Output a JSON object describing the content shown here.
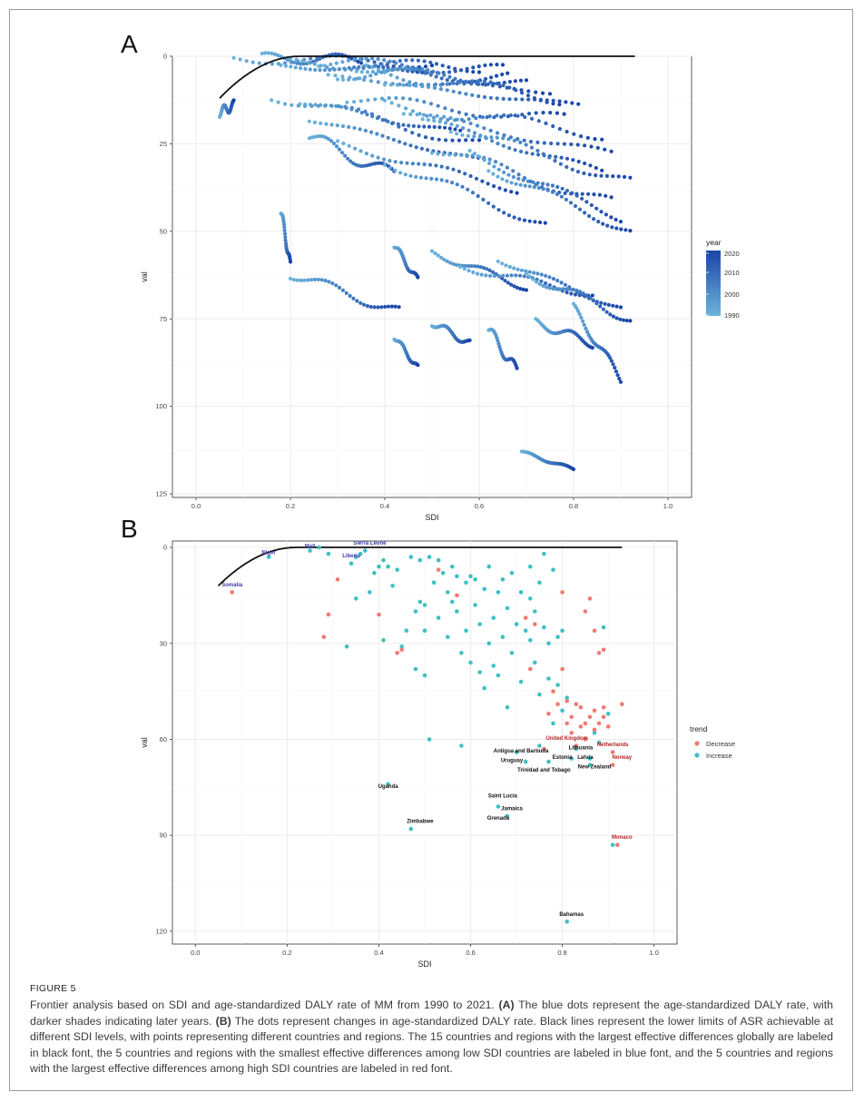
{
  "caption": {
    "label": "FIGURE 5",
    "p1": "Frontier analysis based on SDI and age-standardized DALY rate of MM from 1990 to 2021. ",
    "a_tag": "(A)",
    "p2": " The blue dots represent the age-standardized DALY rate, with darker shades indicating later years. ",
    "b_tag": "(B)",
    "p3": " The dots represent changes in age-standardized DALY rate. Black lines represent the lower limits of ASR achievable at different SDI levels, with points representing different countries and regions. The 15 countries and regions with the largest effective differences globally are labeled in black font, the 5 countries and regions with the smallest effective differences among low SDI countries are labeled in blue font, and the 5 countries and regions with the largest effective differences among high SDI countries are labeled in red font."
  },
  "colors": {
    "year_low": "#6BB3DB",
    "year_high": "#1A45A8",
    "decrease": "#F07A73",
    "increase": "#3EC0C4",
    "frontier": "#111111",
    "grid": "#ebebeb",
    "label_blue": "#3B3BA8",
    "label_red": "#B22222",
    "label_black": "#111111"
  },
  "chart_data": [
    {
      "panel": "A",
      "type": "scatter",
      "title": "",
      "xlabel": "SDI",
      "ylabel": "val",
      "xlim": [
        -0.05,
        1.05
      ],
      "ylim": [
        0,
        126
      ],
      "y_reversed": true,
      "xticks": [
        "0.0",
        "0.2",
        "0.4",
        "0.6",
        "0.8",
        "1.0"
      ],
      "yticks": [
        "0",
        "25",
        "50",
        "75",
        "100",
        "125"
      ],
      "grid": true,
      "legend": {
        "title": "year",
        "type": "colorbar",
        "position": "right",
        "labels": [
          "2020",
          "2010",
          "2000",
          "1990"
        ]
      },
      "frontier": {
        "x": [
          0.05,
          0.08,
          0.11,
          0.14,
          0.17,
          0.2,
          0.22,
          0.3,
          0.5,
          0.7,
          0.93
        ],
        "y": [
          12,
          8.5,
          5.5,
          3,
          1.2,
          0.3,
          0,
          0,
          0,
          0,
          0
        ]
      },
      "trajectories": [
        {
          "x0": 0.05,
          "y0": 16,
          "x1": 0.08,
          "y1": 14
        },
        {
          "x0": 0.08,
          "y0": 0.5,
          "x1": 0.5,
          "y1": 2
        },
        {
          "x0": 0.14,
          "y0": 0.5,
          "x1": 0.35,
          "y1": 1
        },
        {
          "x0": 0.18,
          "y0": 3,
          "x1": 0.5,
          "y1": 4
        },
        {
          "x0": 0.2,
          "y0": 2,
          "x1": 0.6,
          "y1": 3
        },
        {
          "x0": 0.26,
          "y0": 1.5,
          "x1": 0.65,
          "y1": 4
        },
        {
          "x0": 0.3,
          "y0": 5,
          "x1": 0.66,
          "y1": 6
        },
        {
          "x0": 0.34,
          "y0": 3,
          "x1": 0.7,
          "y1": 8
        },
        {
          "x0": 0.28,
          "y0": 6,
          "x1": 0.75,
          "y1": 10
        },
        {
          "x0": 0.36,
          "y0": 4,
          "x1": 0.77,
          "y1": 12
        },
        {
          "x0": 0.4,
          "y0": 8,
          "x1": 0.81,
          "y1": 14
        },
        {
          "x0": 0.32,
          "y0": 12,
          "x1": 0.78,
          "y1": 18
        },
        {
          "x0": 0.22,
          "y0": 13,
          "x1": 0.56,
          "y1": 22
        },
        {
          "x0": 0.4,
          "y0": 14,
          "x1": 0.86,
          "y1": 22
        },
        {
          "x0": 0.44,
          "y0": 16,
          "x1": 0.88,
          "y1": 28
        },
        {
          "x0": 0.16,
          "y0": 11,
          "x1": 0.6,
          "y1": 25
        },
        {
          "x0": 0.24,
          "y0": 18,
          "x1": 0.61,
          "y1": 30
        },
        {
          "x0": 0.48,
          "y0": 18,
          "x1": 0.86,
          "y1": 33
        },
        {
          "x0": 0.24,
          "y0": 23,
          "x1": 0.42,
          "y1": 34
        },
        {
          "x0": 0.54,
          "y0": 20,
          "x1": 0.92,
          "y1": 36
        },
        {
          "x0": 0.3,
          "y0": 25,
          "x1": 0.68,
          "y1": 38
        },
        {
          "x0": 0.5,
          "y0": 26,
          "x1": 0.88,
          "y1": 42
        },
        {
          "x0": 0.58,
          "y0": 28,
          "x1": 0.9,
          "y1": 46
        },
        {
          "x0": 0.4,
          "y0": 30,
          "x1": 0.74,
          "y1": 48
        },
        {
          "x0": 0.62,
          "y0": 32,
          "x1": 0.92,
          "y1": 50
        },
        {
          "x0": 0.18,
          "y0": 44,
          "x1": 0.2,
          "y1": 60
        },
        {
          "x0": 0.2,
          "y0": 62,
          "x1": 0.43,
          "y1": 73
        },
        {
          "x0": 0.42,
          "y0": 54,
          "x1": 0.47,
          "y1": 64
        },
        {
          "x0": 0.5,
          "y0": 56,
          "x1": 0.7,
          "y1": 66
        },
        {
          "x0": 0.56,
          "y0": 60,
          "x1": 0.84,
          "y1": 68
        },
        {
          "x0": 0.64,
          "y0": 58,
          "x1": 0.9,
          "y1": 72
        },
        {
          "x0": 0.7,
          "y0": 62,
          "x1": 0.92,
          "y1": 75
        },
        {
          "x0": 0.42,
          "y0": 80,
          "x1": 0.47,
          "y1": 89
        },
        {
          "x0": 0.5,
          "y0": 76,
          "x1": 0.58,
          "y1": 82
        },
        {
          "x0": 0.62,
          "y0": 78,
          "x1": 0.68,
          "y1": 90
        },
        {
          "x0": 0.72,
          "y0": 76,
          "x1": 0.84,
          "y1": 82
        },
        {
          "x0": 0.8,
          "y0": 72,
          "x1": 0.9,
          "y1": 92
        },
        {
          "x0": 0.69,
          "y0": 113,
          "x1": 0.8,
          "y1": 118
        }
      ]
    },
    {
      "panel": "B",
      "type": "scatter",
      "title": "",
      "xlabel": "SDI",
      "ylabel": "val",
      "xlim": [
        -0.05,
        1.05
      ],
      "ylim": [
        -2,
        124
      ],
      "y_reversed": true,
      "xticks": [
        "0.0",
        "0.2",
        "0.4",
        "0.6",
        "0.8",
        "1.0"
      ],
      "yticks": [
        "0",
        "30",
        "60",
        "90",
        "120"
      ],
      "grid": true,
      "legend": {
        "title": "trend",
        "position": "right",
        "entries": [
          "Decrease",
          "Increase"
        ]
      },
      "frontier": {
        "x": [
          0.05,
          0.08,
          0.11,
          0.14,
          0.17,
          0.2,
          0.22,
          0.3,
          0.5,
          0.7,
          0.93
        ],
        "y": [
          12,
          8.5,
          5.5,
          3,
          1.2,
          0.3,
          0,
          0,
          0,
          0,
          0
        ]
      },
      "labels": [
        {
          "text": "Somalia",
          "x": 0.08,
          "y": 13,
          "color": "blue"
        },
        {
          "text": "Niger",
          "x": 0.16,
          "y": 3,
          "color": "blue"
        },
        {
          "text": "Mali",
          "x": 0.25,
          "y": 1,
          "color": "blue"
        },
        {
          "text": "Sierra Leone",
          "x": 0.38,
          "y": 0,
          "color": "blue"
        },
        {
          "text": "Liberia",
          "x": 0.34,
          "y": 4,
          "color": "blue"
        },
        {
          "text": "Uganda",
          "x": 0.42,
          "y": 76,
          "color": "black"
        },
        {
          "text": "Zimbabwe",
          "x": 0.49,
          "y": 87,
          "color": "black"
        },
        {
          "text": "Saint Lucia",
          "x": 0.67,
          "y": 79,
          "color": "black"
        },
        {
          "text": "Jamaica",
          "x": 0.69,
          "y": 83,
          "color": "black"
        },
        {
          "text": "Grenada",
          "x": 0.66,
          "y": 86,
          "color": "black"
        },
        {
          "text": "Antigua and Barbuda",
          "x": 0.71,
          "y": 65,
          "color": "black"
        },
        {
          "text": "Uruguay",
          "x": 0.69,
          "y": 68,
          "color": "black"
        },
        {
          "text": "Trinidad and Tobago",
          "x": 0.76,
          "y": 71,
          "color": "black"
        },
        {
          "text": "Estonia",
          "x": 0.8,
          "y": 67,
          "color": "black"
        },
        {
          "text": "Latvia",
          "x": 0.85,
          "y": 67,
          "color": "black"
        },
        {
          "text": "Lithuania",
          "x": 0.84,
          "y": 64,
          "color": "black"
        },
        {
          "text": "New Zealand",
          "x": 0.87,
          "y": 70,
          "color": "black"
        },
        {
          "text": "Bahamas",
          "x": 0.82,
          "y": 116,
          "color": "black"
        },
        {
          "text": "United Kingdom",
          "x": 0.81,
          "y": 61,
          "color": "red"
        },
        {
          "text": "Netherlands",
          "x": 0.91,
          "y": 63,
          "color": "red"
        },
        {
          "text": "Norway",
          "x": 0.93,
          "y": 67,
          "color": "red"
        },
        {
          "text": "Monaco",
          "x": 0.93,
          "y": 92,
          "color": "red"
        }
      ],
      "decrease_points": [
        [
          0.08,
          14
        ],
        [
          0.28,
          28
        ],
        [
          0.29,
          21
        ],
        [
          0.31,
          10
        ],
        [
          0.4,
          21
        ],
        [
          0.44,
          33
        ],
        [
          0.45,
          32
        ],
        [
          0.53,
          7
        ],
        [
          0.57,
          15
        ],
        [
          0.72,
          22
        ],
        [
          0.73,
          38
        ],
        [
          0.74,
          24
        ],
        [
          0.76,
          63
        ],
        [
          0.77,
          52
        ],
        [
          0.78,
          45
        ],
        [
          0.79,
          49
        ],
        [
          0.8,
          14
        ],
        [
          0.8,
          38
        ],
        [
          0.81,
          55
        ],
        [
          0.81,
          48
        ],
        [
          0.82,
          58
        ],
        [
          0.82,
          53
        ],
        [
          0.83,
          49
        ],
        [
          0.83,
          62
        ],
        [
          0.84,
          56
        ],
        [
          0.84,
          50
        ],
        [
          0.85,
          20
        ],
        [
          0.85,
          55
        ],
        [
          0.85,
          60
        ],
        [
          0.86,
          53
        ],
        [
          0.86,
          16
        ],
        [
          0.87,
          51
        ],
        [
          0.87,
          57
        ],
        [
          0.87,
          26
        ],
        [
          0.88,
          33
        ],
        [
          0.88,
          55
        ],
        [
          0.89,
          53
        ],
        [
          0.89,
          50
        ],
        [
          0.89,
          32
        ],
        [
          0.9,
          56
        ],
        [
          0.91,
          68
        ],
        [
          0.91,
          64
        ],
        [
          0.93,
          49
        ],
        [
          0.92,
          93
        ]
      ],
      "increase_points": [
        [
          0.16,
          3
        ],
        [
          0.25,
          1
        ],
        [
          0.27,
          0
        ],
        [
          0.29,
          2
        ],
        [
          0.33,
          31
        ],
        [
          0.34,
          5
        ],
        [
          0.35,
          3
        ],
        [
          0.35,
          16
        ],
        [
          0.36,
          2
        ],
        [
          0.37,
          1
        ],
        [
          0.38,
          14
        ],
        [
          0.39,
          8
        ],
        [
          0.4,
          6
        ],
        [
          0.41,
          29
        ],
        [
          0.41,
          4
        ],
        [
          0.42,
          74
        ],
        [
          0.42,
          6
        ],
        [
          0.43,
          12
        ],
        [
          0.44,
          7
        ],
        [
          0.45,
          31
        ],
        [
          0.46,
          26
        ],
        [
          0.47,
          88
        ],
        [
          0.47,
          3
        ],
        [
          0.48,
          20
        ],
        [
          0.48,
          38
        ],
        [
          0.49,
          17
        ],
        [
          0.49,
          4
        ],
        [
          0.5,
          26
        ],
        [
          0.5,
          40
        ],
        [
          0.5,
          18
        ],
        [
          0.51,
          3
        ],
        [
          0.51,
          60
        ],
        [
          0.52,
          11
        ],
        [
          0.53,
          22
        ],
        [
          0.53,
          4
        ],
        [
          0.54,
          8
        ],
        [
          0.55,
          14
        ],
        [
          0.55,
          28
        ],
        [
          0.56,
          17
        ],
        [
          0.56,
          6
        ],
        [
          0.57,
          9
        ],
        [
          0.57,
          20
        ],
        [
          0.58,
          33
        ],
        [
          0.58,
          62
        ],
        [
          0.59,
          11
        ],
        [
          0.59,
          26
        ],
        [
          0.6,
          9
        ],
        [
          0.6,
          36
        ],
        [
          0.61,
          18
        ],
        [
          0.61,
          10
        ],
        [
          0.62,
          24
        ],
        [
          0.62,
          39
        ],
        [
          0.63,
          13
        ],
        [
          0.63,
          44
        ],
        [
          0.64,
          30
        ],
        [
          0.64,
          6
        ],
        [
          0.65,
          22
        ],
        [
          0.65,
          37
        ],
        [
          0.66,
          14
        ],
        [
          0.66,
          40
        ],
        [
          0.66,
          81
        ],
        [
          0.67,
          28
        ],
        [
          0.67,
          10
        ],
        [
          0.68,
          50
        ],
        [
          0.68,
          19
        ],
        [
          0.68,
          84
        ],
        [
          0.69,
          8
        ],
        [
          0.69,
          33
        ],
        [
          0.7,
          24
        ],
        [
          0.7,
          64
        ],
        [
          0.71,
          14
        ],
        [
          0.71,
          42
        ],
        [
          0.72,
          26
        ],
        [
          0.72,
          67
        ],
        [
          0.73,
          6
        ],
        [
          0.73,
          29
        ],
        [
          0.73,
          16
        ],
        [
          0.74,
          36
        ],
        [
          0.74,
          20
        ],
        [
          0.75,
          62
        ],
        [
          0.75,
          46
        ],
        [
          0.75,
          11
        ],
        [
          0.76,
          2
        ],
        [
          0.76,
          25
        ],
        [
          0.77,
          41
        ],
        [
          0.77,
          67
        ],
        [
          0.77,
          30
        ],
        [
          0.78,
          7
        ],
        [
          0.78,
          55
        ],
        [
          0.79,
          43
        ],
        [
          0.79,
          28
        ],
        [
          0.8,
          51
        ],
        [
          0.8,
          26
        ],
        [
          0.81,
          117
        ],
        [
          0.81,
          47
        ],
        [
          0.82,
          66
        ],
        [
          0.83,
          63
        ],
        [
          0.86,
          68
        ],
        [
          0.86,
          66
        ],
        [
          0.87,
          58
        ],
        [
          0.88,
          61
        ],
        [
          0.89,
          25
        ],
        [
          0.9,
          52
        ],
        [
          0.91,
          93
        ]
      ]
    }
  ]
}
